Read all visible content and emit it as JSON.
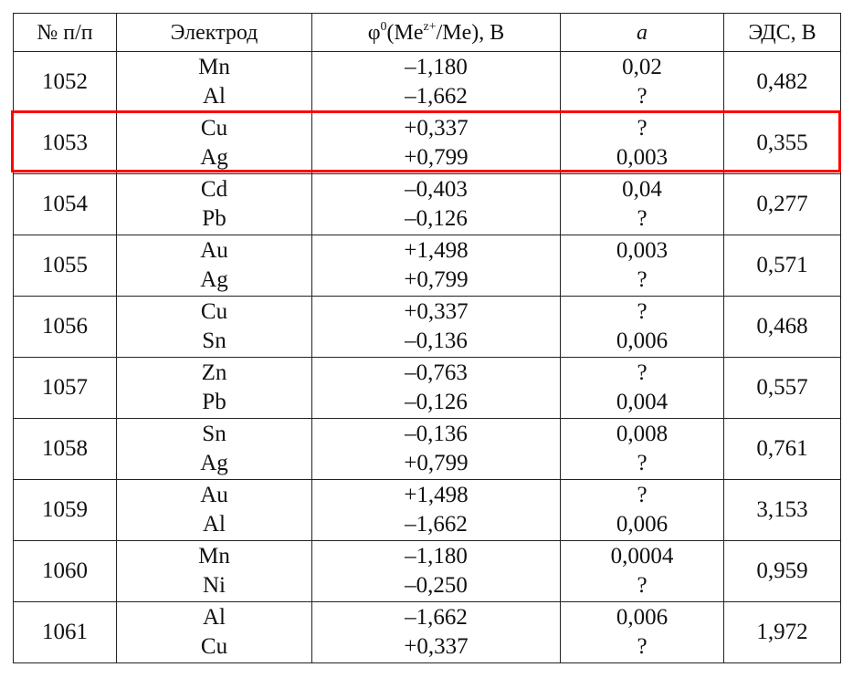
{
  "header": {
    "num": "№ п/п",
    "electrode": "Электрод",
    "phi_prefix": "φ",
    "phi_sup0": "0",
    "phi_mid": "(Me",
    "phi_supz": "z+",
    "phi_suffix": "/Me), В",
    "activity": "a",
    "emf": "ЭДС, В"
  },
  "highlight_color": "#ff0000",
  "highlighted_row": "1053",
  "rows": [
    {
      "num": "1052",
      "el": [
        "Mn",
        "Al"
      ],
      "phi": [
        "–1,180",
        "–1,662"
      ],
      "a": [
        "0,02",
        "?"
      ],
      "emf": "0,482"
    },
    {
      "num": "1053",
      "el": [
        "Cu",
        "Ag"
      ],
      "phi": [
        "+0,337",
        "+0,799"
      ],
      "a": [
        "?",
        "0,003"
      ],
      "emf": "0,355"
    },
    {
      "num": "1054",
      "el": [
        "Cd",
        "Pb"
      ],
      "phi": [
        "–0,403",
        "–0,126"
      ],
      "a": [
        "0,04",
        "?"
      ],
      "emf": "0,277"
    },
    {
      "num": "1055",
      "el": [
        "Au",
        "Ag"
      ],
      "phi": [
        "+1,498",
        "+0,799"
      ],
      "a": [
        "0,003",
        "?"
      ],
      "emf": "0,571"
    },
    {
      "num": "1056",
      "el": [
        "Cu",
        "Sn"
      ],
      "phi": [
        "+0,337",
        "–0,136"
      ],
      "a": [
        "?",
        "0,006"
      ],
      "emf": "0,468"
    },
    {
      "num": "1057",
      "el": [
        "Zn",
        "Pb"
      ],
      "phi": [
        "–0,763",
        "–0,126"
      ],
      "a": [
        "?",
        "0,004"
      ],
      "emf": "0,557"
    },
    {
      "num": "1058",
      "el": [
        "Sn",
        "Ag"
      ],
      "phi": [
        "–0,136",
        "+0,799"
      ],
      "a": [
        "0,008",
        "?"
      ],
      "emf": "0,761"
    },
    {
      "num": "1059",
      "el": [
        "Au",
        "Al"
      ],
      "phi": [
        "+1,498",
        "–1,662"
      ],
      "a": [
        "?",
        "0,006"
      ],
      "emf": "3,153"
    },
    {
      "num": "1060",
      "el": [
        "Mn",
        "Ni"
      ],
      "phi": [
        "–1,180",
        "–0,250"
      ],
      "a": [
        "0,0004",
        "?"
      ],
      "emf": "0,959"
    },
    {
      "num": "1061",
      "el": [
        "Al",
        "Cu"
      ],
      "phi": [
        "–1,662",
        "+0,337"
      ],
      "a": [
        "0,006",
        "?"
      ],
      "emf": "1,972"
    }
  ]
}
